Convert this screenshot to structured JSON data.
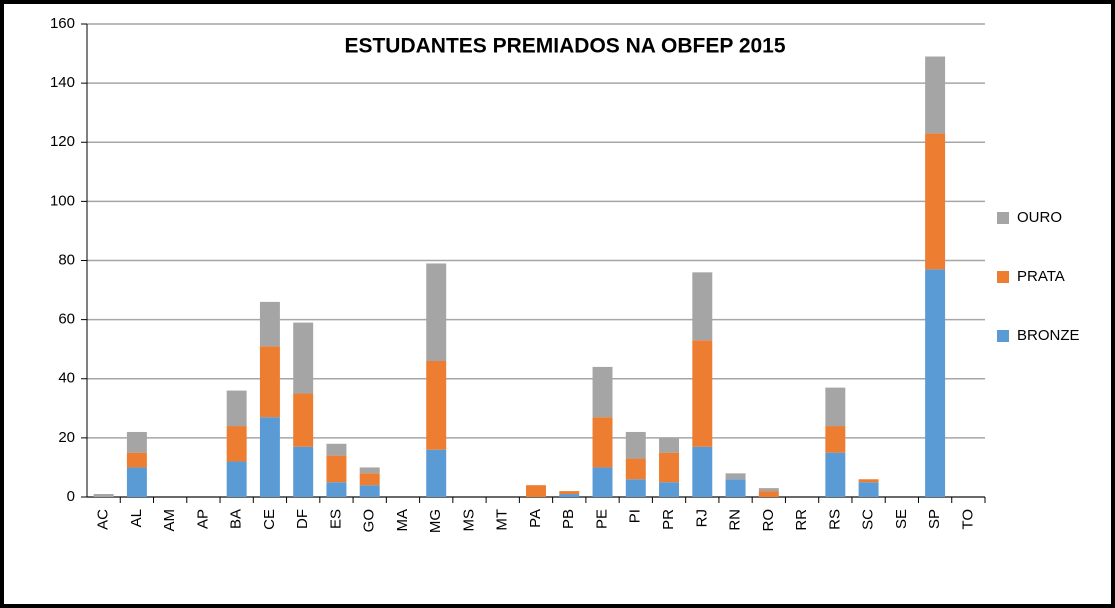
{
  "chart_data": {
    "type": "stacked_bar",
    "title": "ESTUDANTES PREMIADOS  NA OBFEP 2015",
    "categories": [
      "AC",
      "AL",
      "AM",
      "AP",
      "BA",
      "CE",
      "DF",
      "ES",
      "GO",
      "MA",
      "MG",
      "MS",
      "MT",
      "PA",
      "PB",
      "PE",
      "PI",
      "PR",
      "RJ",
      "RN",
      "RO",
      "RR",
      "RS",
      "SC",
      "SE",
      "SP",
      "TO"
    ],
    "series": [
      {
        "name": "BRONZE",
        "color": "#5b9bd5",
        "values": [
          0,
          10,
          0,
          0,
          12,
          27,
          17,
          5,
          4,
          0,
          16,
          0,
          0,
          0,
          1,
          10,
          6,
          5,
          17,
          6,
          0,
          0,
          15,
          5,
          0,
          77,
          0
        ]
      },
      {
        "name": "PRATA",
        "color": "#ed7d31",
        "values": [
          0,
          5,
          0,
          0,
          12,
          24,
          18,
          9,
          4,
          0,
          30,
          0,
          0,
          4,
          1,
          17,
          7,
          10,
          36,
          0,
          2,
          0,
          9,
          1,
          0,
          46,
          0
        ]
      },
      {
        "name": "OURO",
        "color": "#a5a5a5",
        "values": [
          1,
          7,
          0,
          0,
          12,
          15,
          24,
          4,
          2,
          0,
          33,
          0,
          0,
          0,
          0,
          17,
          9,
          5,
          23,
          2,
          1,
          0,
          13,
          0,
          0,
          26,
          0
        ]
      }
    ],
    "ylim": [
      0,
      160
    ],
    "yticks": [
      0,
      20,
      40,
      60,
      80,
      100,
      120,
      140,
      160
    ],
    "grid": true,
    "legend": "right"
  }
}
